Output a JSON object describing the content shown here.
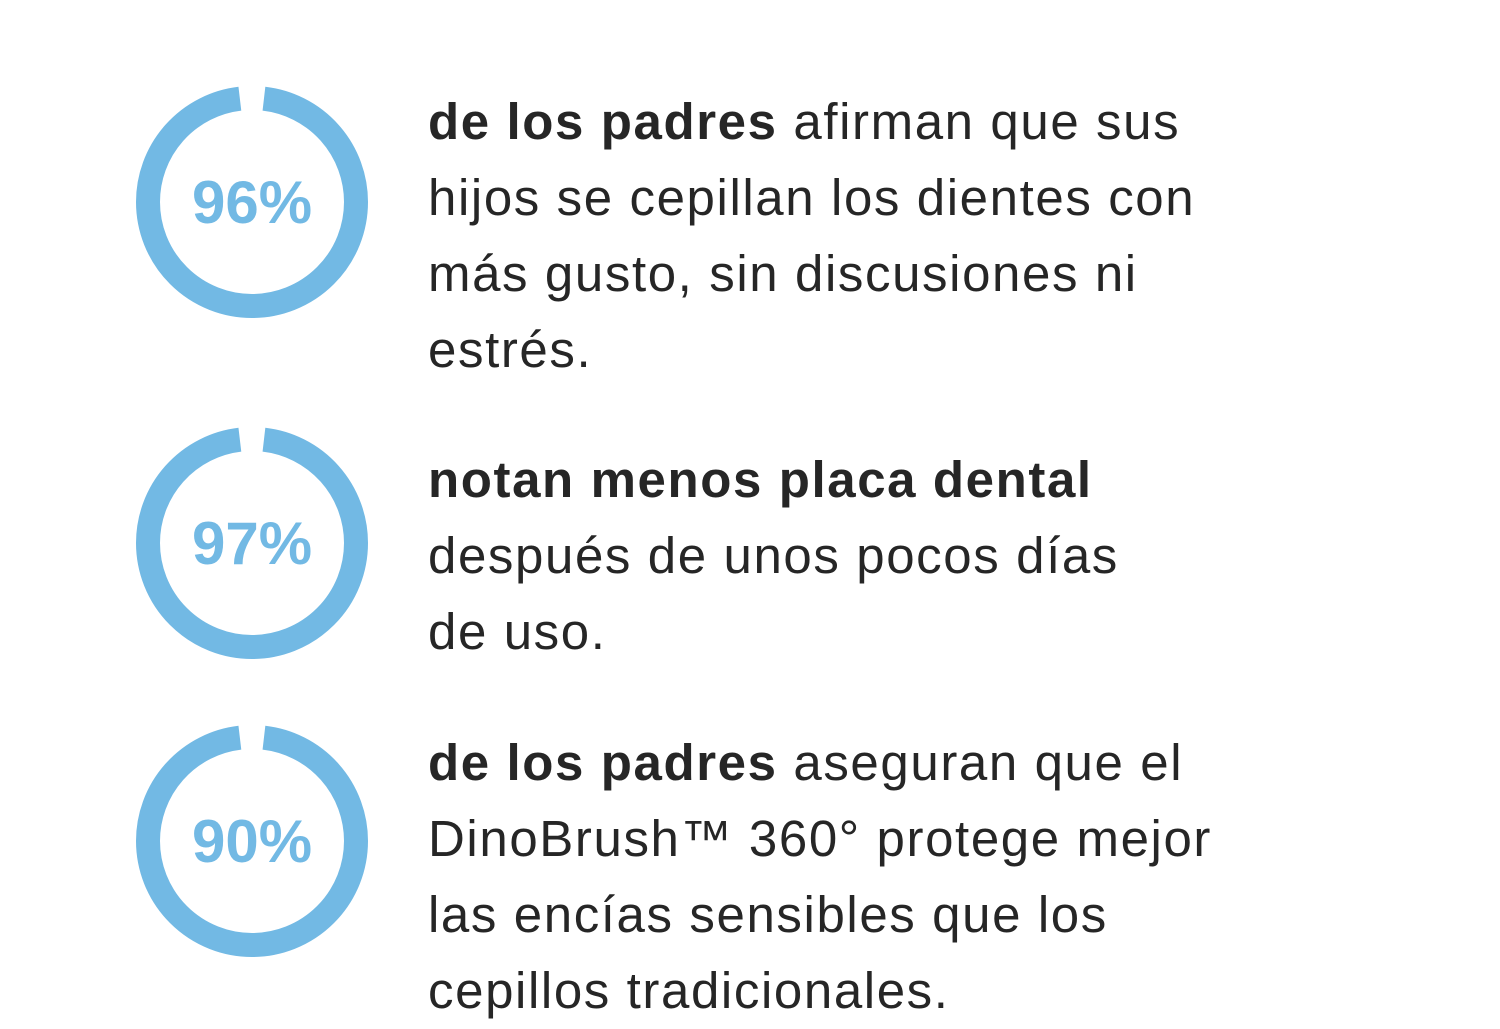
{
  "colors": {
    "accent": "#72b9e4",
    "text": "#262626"
  },
  "stats": [
    {
      "percent_label": "96%",
      "value": 96,
      "lines": [
        {
          "bold": "de los padres",
          "text": " afirman que sus"
        },
        {
          "text": "hijos se cepillan los dientes con"
        },
        {
          "text": "más gusto, sin discusiones ni"
        },
        {
          "text": "estrés."
        }
      ]
    },
    {
      "percent_label": "97%",
      "value": 97,
      "lines": [
        {
          "bold": "notan menos placa dental"
        },
        {
          "text": "después de unos pocos días"
        },
        {
          "text": "de uso."
        }
      ]
    },
    {
      "percent_label": "90%",
      "value": 90,
      "lines": [
        {
          "bold": "de los padres",
          "text": " aseguran que el"
        },
        {
          "text": "DinoBrush™ 360° protege mejor"
        },
        {
          "text": "las encías sensibles que los"
        },
        {
          "text": "cepillos tradicionales."
        }
      ]
    }
  ]
}
